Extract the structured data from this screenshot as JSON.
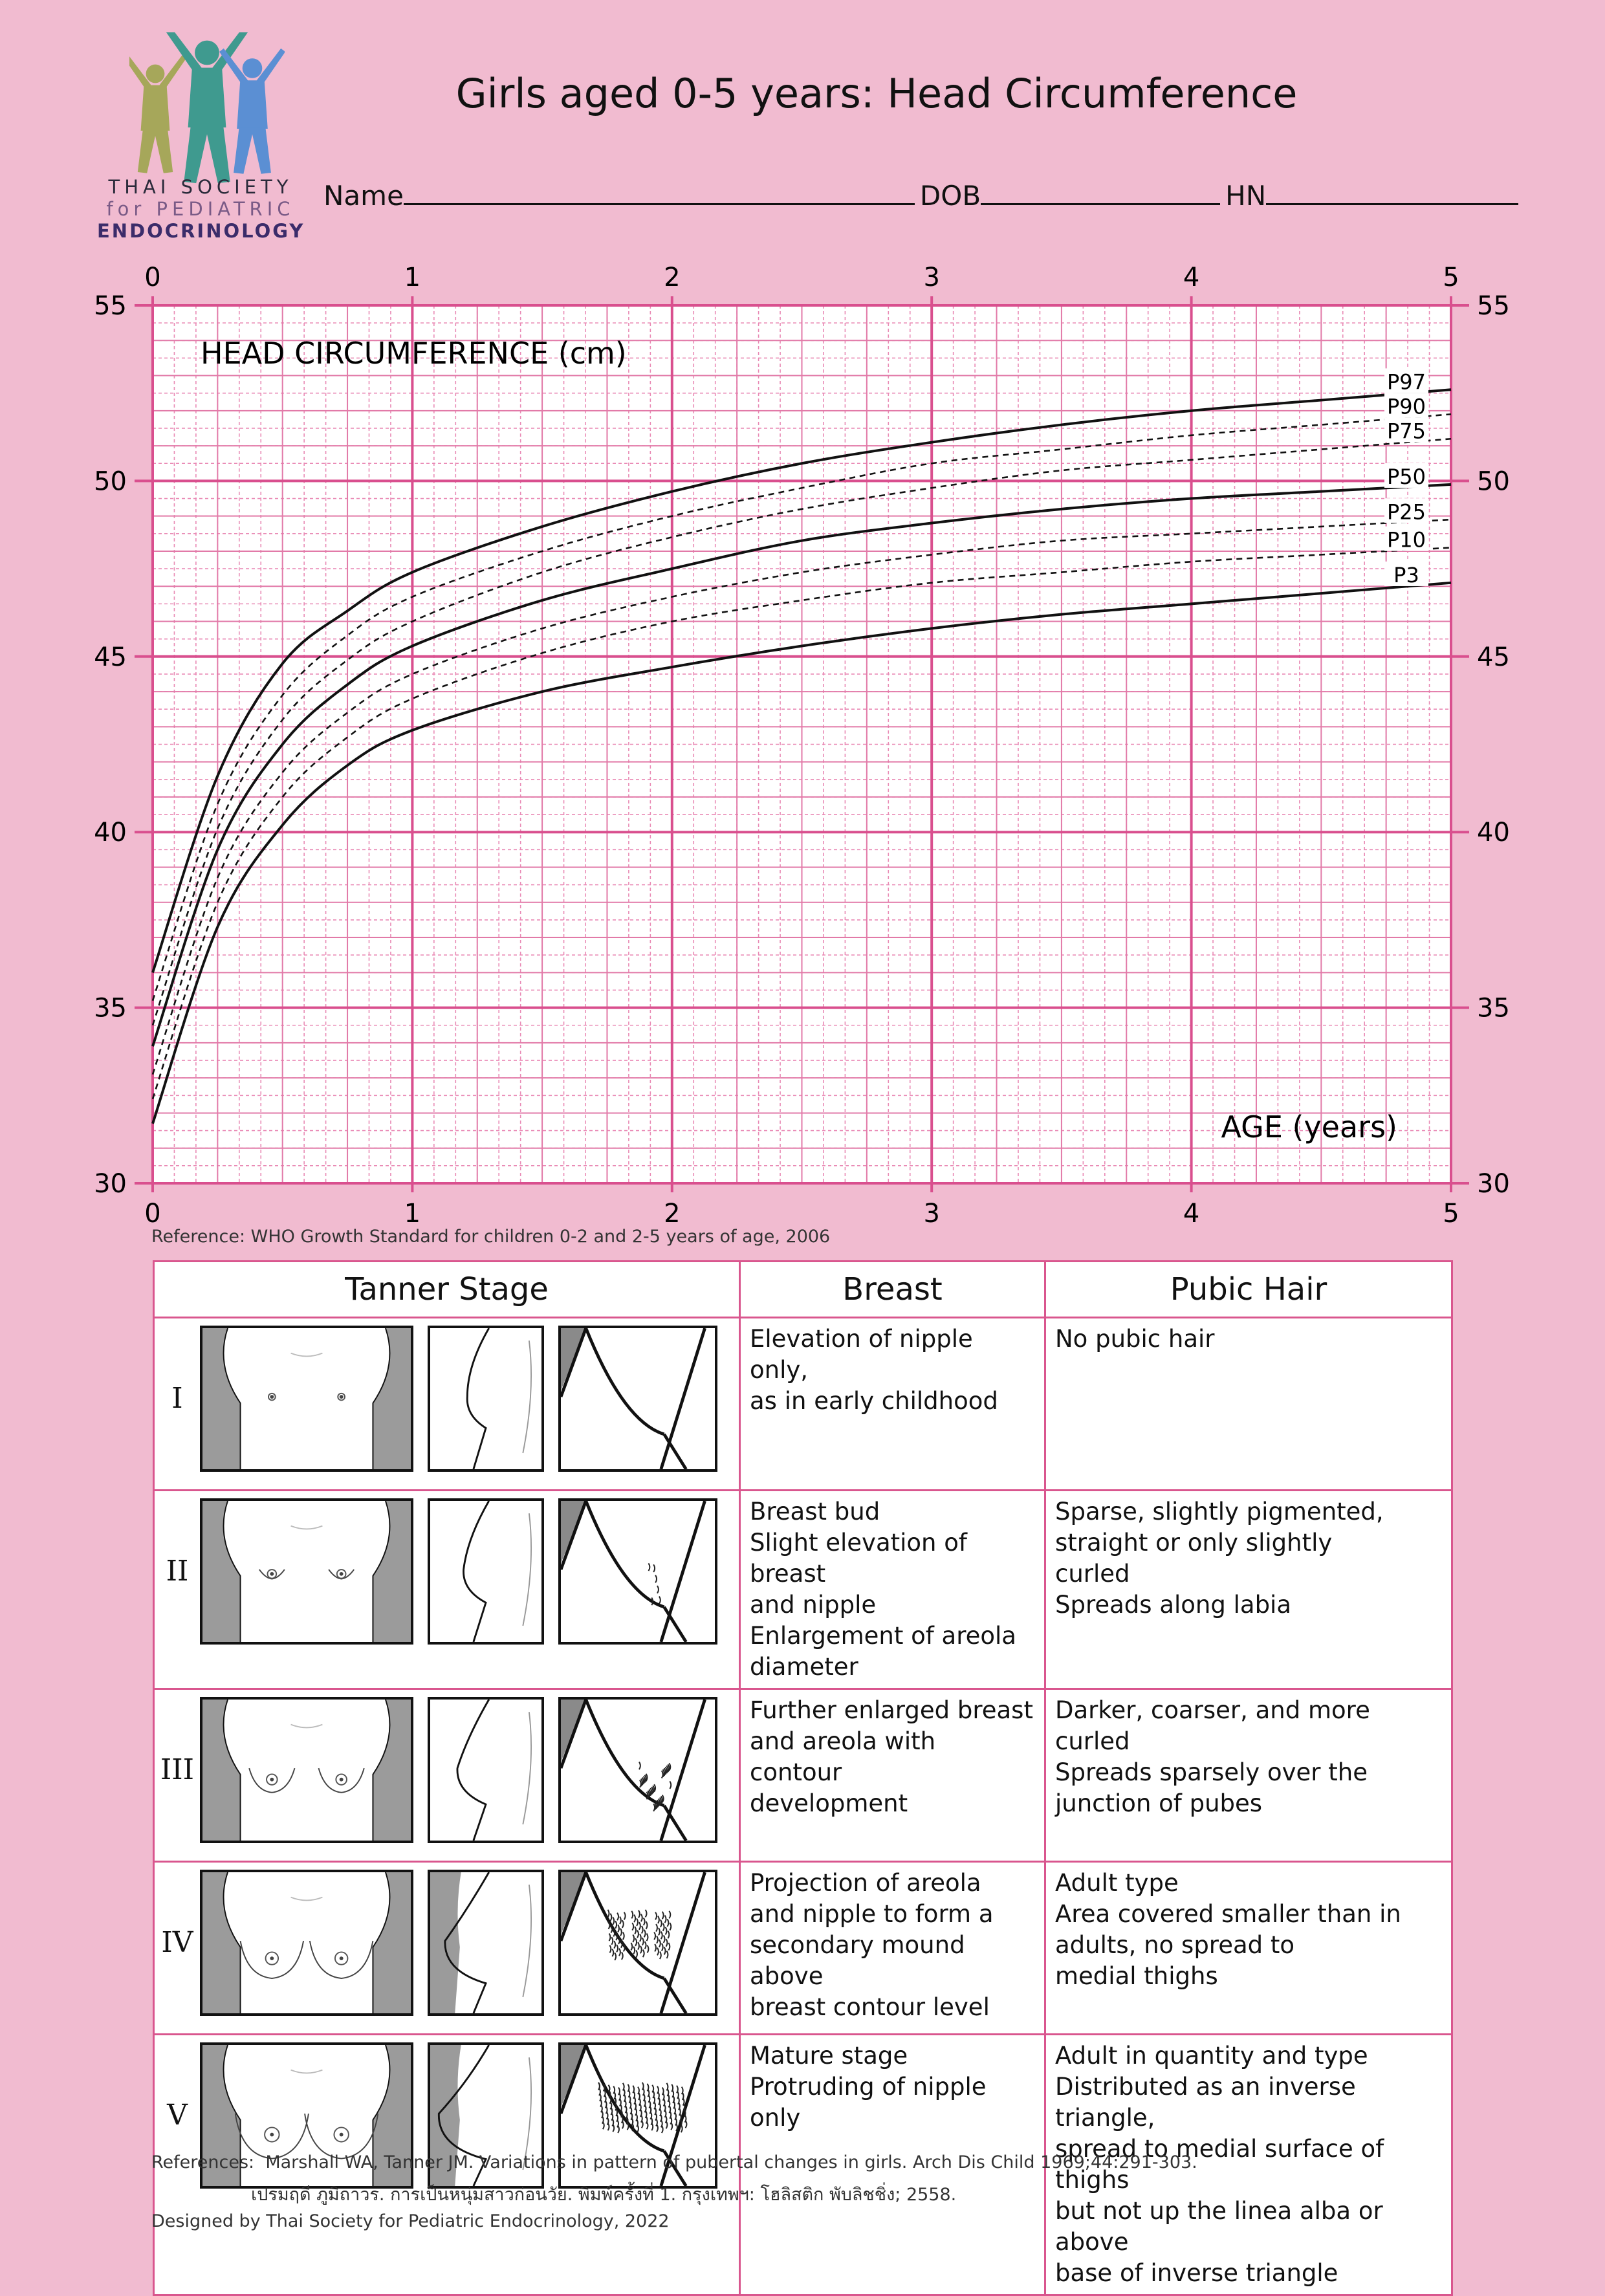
{
  "logo": {
    "line1": "THAI SOCIETY",
    "line2": "for PEDIATRIC",
    "line3": "ENDOCRINOLOGY",
    "colors": [
      "#a6a75a",
      "#3f9a8f",
      "#5b8fd3"
    ]
  },
  "title": "Girls aged 0-5 years: Head Circumference",
  "form": {
    "name_label": "Name",
    "dob_label": "DOB",
    "hn_label": "HN"
  },
  "chart_data": {
    "type": "line",
    "title": "",
    "ylabel": "HEAD CIRCUMFERENCE (cm)",
    "xlabel": "AGE (years)",
    "xlim": [
      0,
      5
    ],
    "ylim": [
      30,
      55
    ],
    "x_ticks": [
      "0",
      "1",
      "2",
      "3",
      "4",
      "5"
    ],
    "y_ticks": [
      "30",
      "35",
      "40",
      "45",
      "50",
      "55"
    ],
    "grid": true,
    "x": [
      0,
      0.25,
      0.5,
      0.75,
      1,
      1.5,
      2,
      2.5,
      3,
      3.5,
      4,
      4.5,
      5
    ],
    "series": [
      {
        "name": "P97",
        "style": "solid",
        "values": [
          36.0,
          41.6,
          44.8,
          46.3,
          47.4,
          48.7,
          49.7,
          50.5,
          51.1,
          51.6,
          52.0,
          52.3,
          52.6
        ]
      },
      {
        "name": "P90",
        "style": "dashed",
        "values": [
          35.2,
          40.8,
          43.9,
          45.6,
          46.7,
          48.0,
          49.0,
          49.8,
          50.5,
          50.9,
          51.3,
          51.6,
          51.9
        ]
      },
      {
        "name": "P75",
        "style": "dashed",
        "values": [
          34.5,
          40.1,
          43.2,
          44.9,
          46.0,
          47.4,
          48.4,
          49.2,
          49.8,
          50.3,
          50.6,
          50.9,
          51.2
        ]
      },
      {
        "name": "P50",
        "style": "solid",
        "values": [
          33.9,
          39.5,
          42.5,
          44.2,
          45.3,
          46.6,
          47.5,
          48.3,
          48.8,
          49.2,
          49.5,
          49.7,
          49.9
        ]
      },
      {
        "name": "P25",
        "style": "dashed",
        "values": [
          33.1,
          38.7,
          41.7,
          43.4,
          44.5,
          45.8,
          46.7,
          47.4,
          47.9,
          48.3,
          48.5,
          48.7,
          48.9
        ]
      },
      {
        "name": "P10",
        "style": "dashed",
        "values": [
          32.4,
          38.0,
          41.0,
          42.7,
          43.8,
          45.1,
          46.0,
          46.6,
          47.1,
          47.4,
          47.7,
          47.9,
          48.1
        ]
      },
      {
        "name": "P3",
        "style": "solid",
        "values": [
          31.7,
          37.3,
          40.2,
          41.9,
          42.9,
          44.0,
          44.7,
          45.3,
          45.8,
          46.2,
          46.5,
          46.8,
          47.1
        ]
      }
    ]
  },
  "reference": "Reference: WHO Growth Standard for children 0-2 and 2-5 years of age, 2006",
  "table": {
    "headers": [
      "Tanner Stage",
      "Breast",
      "Pubic Hair"
    ],
    "rows": [
      {
        "stage": "I",
        "breast": [
          "Elevation of nipple only,",
          "as in early childhood"
        ],
        "pubic": [
          "No pubic hair"
        ]
      },
      {
        "stage": "II",
        "breast": [
          "Breast bud",
          "Slight elevation of breast",
          "and nipple",
          "Enlargement of areola",
          "diameter"
        ],
        "pubic": [
          "Sparse, slightly pigmented,",
          "straight or only slightly",
          "curled",
          "Spreads along labia"
        ]
      },
      {
        "stage": "III",
        "breast": [
          "Further enlarged breast",
          "and areola with contour",
          "development"
        ],
        "pubic": [
          "Darker, coarser, and more curled",
          "Spreads sparsely over the",
          "junction of pubes"
        ]
      },
      {
        "stage": "IV",
        "breast": [
          "Projection of areola",
          "and nipple to form a",
          "secondary mound above",
          "breast contour level"
        ],
        "pubic": [
          "Adult type",
          "Area covered smaller than in",
          "adults, no spread to",
          "medial thighs"
        ]
      },
      {
        "stage": "V",
        "breast": [
          "Mature stage",
          "Protruding of nipple",
          "only"
        ],
        "pubic": [
          "Adult in quantity and type",
          "Distributed as an inverse triangle,",
          "spread to medial surface of thighs",
          "but not up the linea alba or above",
          "base of inverse triangle"
        ]
      }
    ]
  },
  "references": {
    "label": "References:",
    "ref1": "Marshall WA, Tanner JM. Variations in pattern of pubertal changes in girls. Arch Dis Child 1969;44:291-303.",
    "ref2": "เปรมฤดี ภูมิถาวร. การเป็นหนุ่มสาวก่อนวัย. พิมพ์ครั้งที่ 1. กรุงเทพฯ: โฮลิสติก พับลิชชิ่ง; 2558."
  },
  "designed_by": "Designed by Thai Society for Pediatric Endocrinology, 2022"
}
